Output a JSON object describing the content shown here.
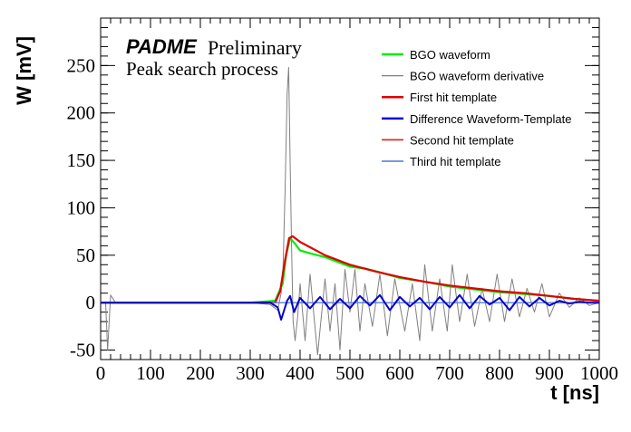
{
  "chart_data": {
    "type": "line",
    "title": "",
    "annotations": {
      "experiment": "PADME",
      "status": "Preliminary",
      "subtitle": "Peak search process"
    },
    "xlabel": "t [ns]",
    "ylabel": "W [mV]",
    "xlim": [
      0,
      1000
    ],
    "ylim": [
      -60,
      300
    ],
    "xticks": [
      0,
      100,
      200,
      300,
      400,
      500,
      600,
      700,
      800,
      900,
      1000
    ],
    "yticks": [
      -50,
      0,
      50,
      100,
      150,
      200,
      250
    ],
    "grid": false,
    "legend_position": "top-right",
    "series": [
      {
        "name": "BGO waveform",
        "color": "#00ee00",
        "x": [
          0,
          100,
          200,
          300,
          350,
          365,
          372,
          380,
          390,
          400,
          420,
          450,
          480,
          500,
          530,
          560,
          600,
          650,
          700,
          750,
          800,
          850,
          900,
          950,
          1000
        ],
        "y": [
          0,
          0,
          0,
          0,
          2,
          20,
          50,
          68,
          62,
          55,
          52,
          48,
          42,
          38,
          36,
          32,
          26,
          22,
          17,
          14,
          11,
          9,
          7,
          4,
          2
        ]
      },
      {
        "name": "BGO waveform derivative",
        "color": "#808080",
        "x": [
          0,
          10,
          14,
          20,
          30,
          100,
          200,
          300,
          340,
          355,
          362,
          366,
          370,
          374,
          377,
          380,
          383,
          386,
          390,
          395,
          400,
          410,
          420,
          435,
          450,
          460,
          470,
          480,
          490,
          500,
          510,
          520,
          530,
          545,
          560,
          575,
          590,
          610,
          625,
          640,
          650,
          665,
          680,
          695,
          705,
          720,
          735,
          750,
          765,
          780,
          795,
          810,
          825,
          840,
          855,
          870,
          885,
          900,
          920,
          940,
          960,
          980,
          1000
        ],
        "y": [
          0,
          0,
          -50,
          8,
          0,
          0,
          0,
          0,
          -2,
          -8,
          10,
          40,
          120,
          220,
          248,
          150,
          60,
          -20,
          -40,
          -15,
          20,
          -40,
          30,
          -55,
          25,
          -30,
          20,
          -50,
          35,
          -10,
          35,
          -30,
          20,
          -25,
          30,
          -35,
          25,
          -30,
          20,
          -40,
          40,
          -30,
          25,
          -30,
          40,
          -20,
          30,
          -25,
          15,
          -20,
          30,
          -20,
          25,
          -15,
          15,
          -10,
          20,
          -15,
          10,
          -5,
          5,
          -3,
          0
        ]
      },
      {
        "name": "First hit template",
        "color": "#dd0000",
        "x": [
          0,
          100,
          200,
          300,
          350,
          360,
          370,
          378,
          385,
          400,
          450,
          500,
          550,
          600,
          650,
          700,
          750,
          800,
          850,
          900,
          950,
          1000
        ],
        "y": [
          0,
          0,
          0,
          0,
          0,
          12,
          45,
          68,
          70,
          64,
          50,
          40,
          33,
          27,
          22,
          18,
          15,
          12,
          10,
          7,
          4,
          2
        ]
      },
      {
        "name": "Difference Waveform-Template",
        "color": "#0000cc",
        "x": [
          0,
          100,
          200,
          300,
          340,
          355,
          362,
          368,
          374,
          380,
          388,
          400,
          420,
          440,
          460,
          480,
          500,
          520,
          540,
          560,
          580,
          600,
          620,
          640,
          660,
          680,
          700,
          720,
          740,
          760,
          780,
          800,
          820,
          840,
          860,
          880,
          900,
          920,
          940,
          960,
          980,
          1000
        ],
        "y": [
          0,
          0,
          0,
          0,
          0,
          -5,
          -18,
          -8,
          2,
          7,
          -10,
          5,
          -6,
          6,
          -7,
          4,
          -6,
          7,
          -3,
          8,
          -8,
          6,
          -4,
          5,
          -7,
          6,
          -5,
          8,
          -6,
          7,
          -2,
          5,
          -8,
          6,
          -4,
          5,
          -3,
          2,
          -1,
          1,
          0,
          0
        ]
      },
      {
        "name": "Second hit template",
        "color": "#cc3333",
        "x": [
          0,
          1000
        ],
        "y": [
          0,
          0
        ]
      },
      {
        "name": "Third hit template",
        "color": "#6688dd",
        "x": [
          0,
          1000
        ],
        "y": [
          0,
          0
        ]
      }
    ]
  }
}
